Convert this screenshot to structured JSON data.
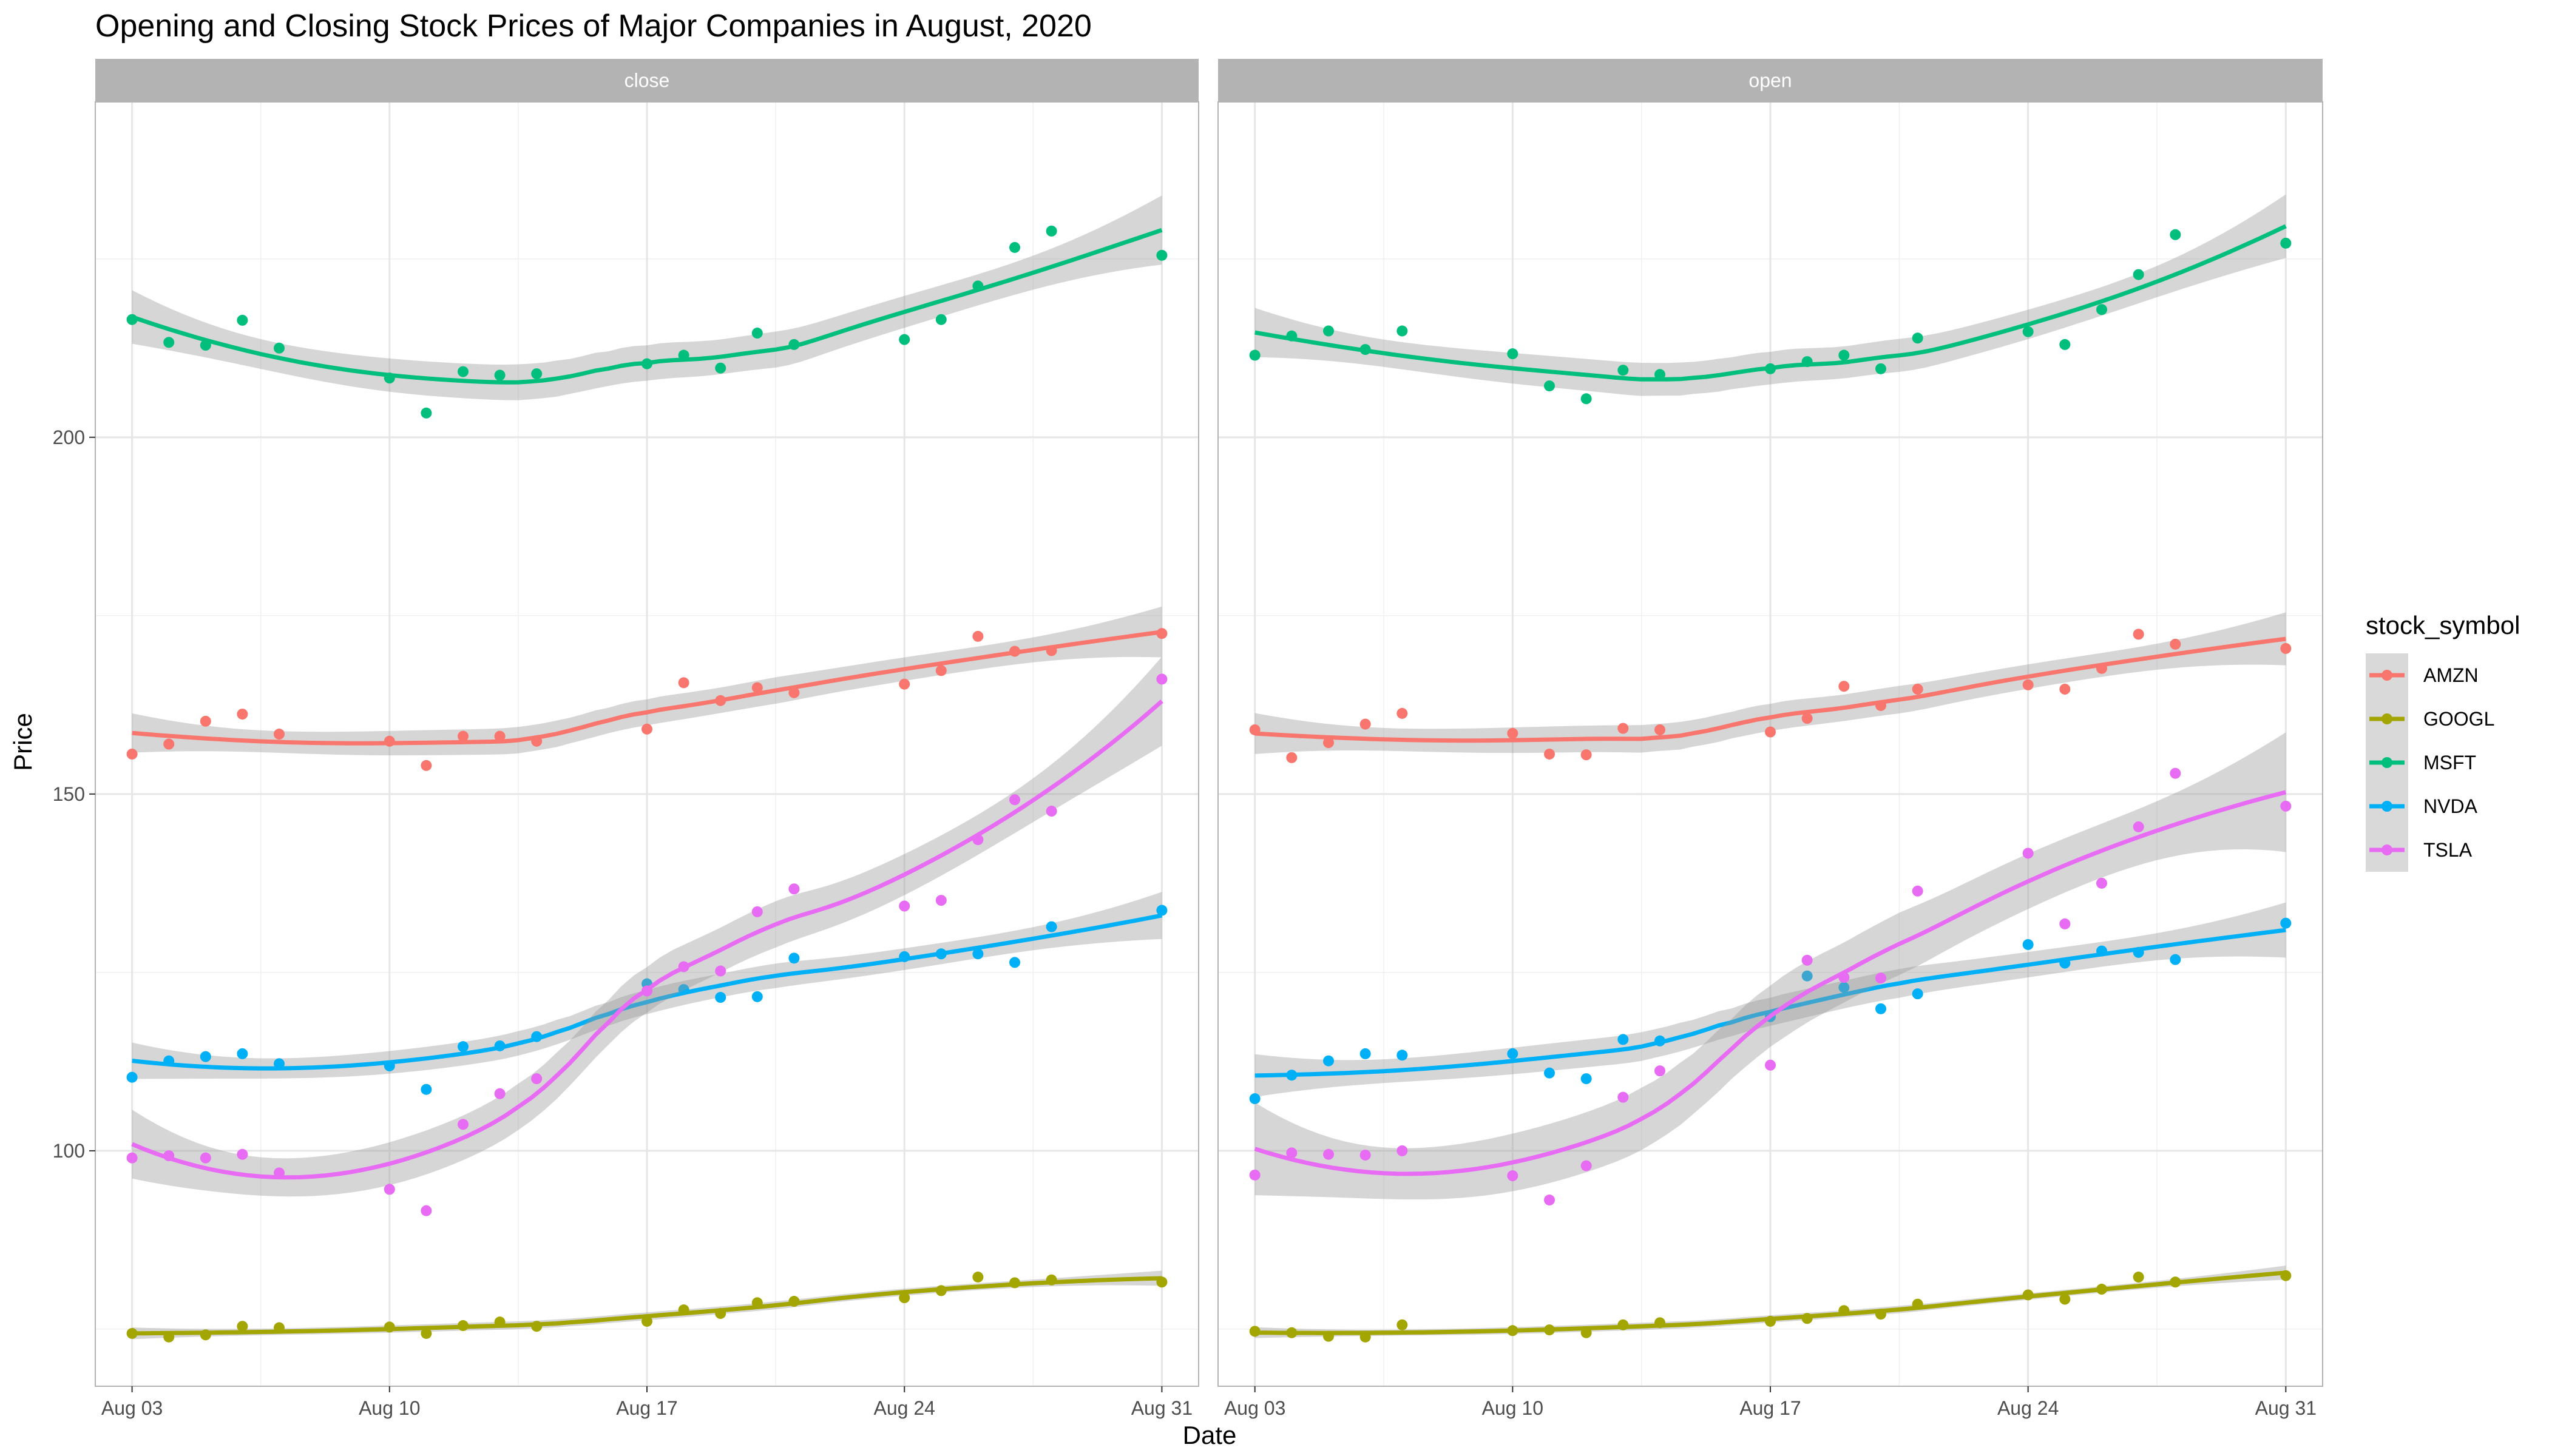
{
  "chart_data": {
    "type": "scatter",
    "title": "Opening and Closing Stock Prices of Major Companies in August, 2020",
    "xlabel": "Date",
    "ylabel": "Price",
    "ylim": [
      67,
      247
    ],
    "xlim": [
      "2020-08-02",
      "2020-09-01"
    ],
    "y_ticks": [
      100,
      150,
      200
    ],
    "x_ticks": [
      "2020-08-03",
      "2020-08-10",
      "2020-08-17",
      "2020-08-24",
      "2020-08-31"
    ],
    "x_tick_labels": [
      "Aug 03",
      "Aug 10",
      "Aug 17",
      "Aug 24",
      "Aug 31"
    ],
    "grid": true,
    "legend": {
      "title": "stock_symbol",
      "position": "right"
    },
    "smoothing": "loess with confidence band",
    "colors": {
      "AMZN": "#F8766D",
      "GOOGL": "#A3A500",
      "MSFT": "#00BF7D",
      "NVDA": "#00B0F6",
      "TSLA": "#E76BF3"
    },
    "dates": [
      "2020-08-03",
      "2020-08-04",
      "2020-08-05",
      "2020-08-06",
      "2020-08-07",
      "2020-08-10",
      "2020-08-11",
      "2020-08-12",
      "2020-08-13",
      "2020-08-14",
      "2020-08-17",
      "2020-08-18",
      "2020-08-19",
      "2020-08-20",
      "2020-08-21",
      "2020-08-24",
      "2020-08-25",
      "2020-08-26",
      "2020-08-27",
      "2020-08-28",
      "2020-08-31"
    ],
    "panels": [
      {
        "label": "close",
        "series": [
          {
            "name": "AMZN",
            "values": [
              155.6,
              157.0,
              160.2,
              161.2,
              158.4,
              157.4,
              154.0,
              158.1,
              158.1,
              157.4,
              159.1,
              165.6,
              163.1,
              164.9,
              164.2,
              165.4,
              167.3,
              172.1,
              170.0,
              170.1,
              172.5
            ]
          },
          {
            "name": "GOOGL",
            "values": [
              74.4,
              73.9,
              74.2,
              75.4,
              75.2,
              75.3,
              74.4,
              75.5,
              76.0,
              75.4,
              76.1,
              77.7,
              77.2,
              78.7,
              78.9,
              79.4,
              80.4,
              82.3,
              81.5,
              81.9,
              81.6
            ]
          },
          {
            "name": "MSFT",
            "values": [
              216.5,
              213.3,
              212.9,
              216.4,
              212.5,
              208.3,
              203.4,
              209.2,
              208.7,
              208.9,
              210.3,
              211.5,
              209.7,
              214.6,
              213.0,
              213.7,
              216.5,
              221.2,
              226.6,
              228.9,
              225.5
            ]
          },
          {
            "name": "NVDA",
            "values": [
              110.3,
              112.6,
              113.2,
              113.6,
              112.2,
              111.9,
              108.6,
              114.6,
              114.7,
              116.0,
              123.4,
              122.6,
              121.5,
              121.6,
              127.0,
              127.2,
              127.6,
              127.6,
              126.4,
              131.4,
              133.7
            ]
          },
          {
            "name": "TSLA",
            "values": [
              99.0,
              99.3,
              99.0,
              99.5,
              96.9,
              94.6,
              91.6,
              103.7,
              108.0,
              110.1,
              122.4,
              125.8,
              125.2,
              133.5,
              136.7,
              134.3,
              135.1,
              143.6,
              149.2,
              147.6,
              166.1
            ]
          }
        ]
      },
      {
        "label": "open",
        "series": [
          {
            "name": "AMZN",
            "values": [
              159.0,
              155.1,
              157.2,
              159.8,
              161.3,
              158.5,
              155.6,
              155.5,
              159.2,
              159.0,
              158.7,
              160.6,
              165.1,
              162.4,
              164.7,
              165.3,
              164.7,
              167.6,
              172.4,
              171.0,
              170.4
            ]
          },
          {
            "name": "GOOGL",
            "values": [
              74.7,
              74.5,
              74.0,
              73.9,
              75.6,
              74.8,
              74.9,
              74.5,
              75.6,
              75.9,
              76.1,
              76.5,
              77.6,
              77.1,
              78.5,
              79.8,
              79.2,
              80.6,
              82.3,
              81.6,
              82.5
            ]
          },
          {
            "name": "MSFT",
            "values": [
              211.5,
              214.2,
              214.9,
              212.3,
              214.9,
              211.7,
              207.2,
              205.4,
              209.4,
              208.8,
              209.6,
              210.6,
              211.5,
              209.6,
              213.9,
              214.8,
              213.0,
              217.9,
              222.8,
              228.4,
              227.2
            ]
          },
          {
            "name": "NVDA",
            "values": [
              107.3,
              110.6,
              112.6,
              113.6,
              113.4,
              113.6,
              110.9,
              110.1,
              115.6,
              115.4,
              118.8,
              124.5,
              122.9,
              119.9,
              122.0,
              128.9,
              126.3,
              128.0,
              127.8,
              126.8,
              131.9
            ]
          },
          {
            "name": "TSLA",
            "values": [
              96.6,
              99.7,
              99.5,
              99.4,
              100.0,
              96.5,
              93.1,
              97.9,
              107.5,
              111.2,
              112.0,
              126.7,
              124.3,
              124.2,
              136.4,
              141.7,
              131.8,
              137.5,
              145.4,
              152.9,
              148.3
            ]
          }
        ]
      }
    ]
  }
}
